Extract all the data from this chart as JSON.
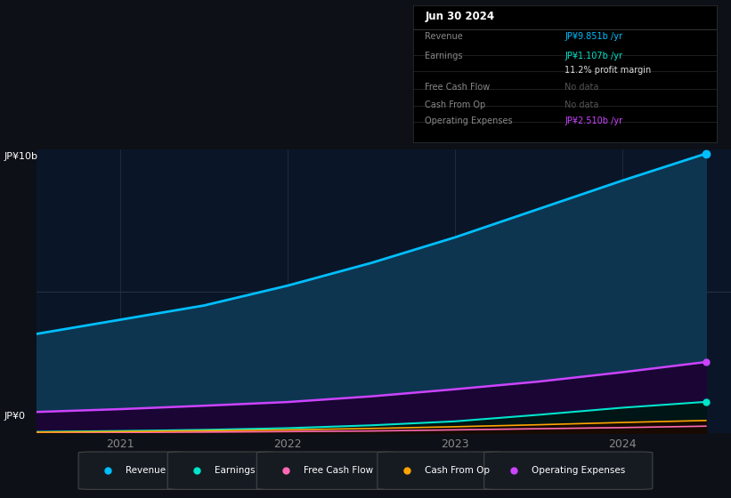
{
  "bg_color": "#0d1117",
  "plot_bg": "#0a1628",
  "title": "Jun 30 2024",
  "ylabel_top": "JP¥10b",
  "ylabel_bottom": "JP¥0",
  "x_years": [
    2020.5,
    2021.0,
    2021.5,
    2022.0,
    2022.5,
    2023.0,
    2023.5,
    2024.0,
    2024.5
  ],
  "revenue": [
    3.5,
    4.0,
    4.5,
    5.2,
    6.0,
    6.9,
    7.9,
    8.9,
    9.851
  ],
  "earnings": [
    0.05,
    0.08,
    0.12,
    0.18,
    0.28,
    0.42,
    0.65,
    0.9,
    1.107
  ],
  "free_cash_flow": [
    0.02,
    0.03,
    0.04,
    0.06,
    0.08,
    0.12,
    0.16,
    0.2,
    0.25
  ],
  "cash_from_op": [
    0.04,
    0.06,
    0.09,
    0.12,
    0.17,
    0.23,
    0.3,
    0.38,
    0.45
  ],
  "operating_expenses": [
    0.75,
    0.85,
    0.97,
    1.1,
    1.3,
    1.55,
    1.82,
    2.15,
    2.51
  ],
  "revenue_color": "#00bfff",
  "earnings_color": "#00e5cc",
  "free_cash_flow_color": "#ff69b4",
  "cash_from_op_color": "#ffa500",
  "op_expenses_color": "#cc44ff",
  "x_tick_labels": [
    "2021",
    "2022",
    "2023",
    "2024"
  ],
  "x_tick_positions": [
    2021,
    2022,
    2023,
    2024
  ],
  "ylim": [
    0,
    10
  ],
  "grid_color": "#243447",
  "legend_items": [
    {
      "label": "Revenue",
      "color": "#00bfff"
    },
    {
      "label": "Earnings",
      "color": "#00e5cc"
    },
    {
      "label": "Free Cash Flow",
      "color": "#ff69b4"
    },
    {
      "label": "Cash From Op",
      "color": "#ffa500"
    },
    {
      "label": "Operating Expenses",
      "color": "#cc44ff"
    }
  ],
  "table_rows": [
    {
      "label": "Revenue",
      "value": "JP¥9.851b /yr",
      "label_color": "#888888",
      "value_color": "#00bfff"
    },
    {
      "label": "Earnings",
      "value": "JP¥1.107b /yr",
      "label_color": "#888888",
      "value_color": "#00e5cc"
    },
    {
      "label": "",
      "value": "11.2% profit margin",
      "label_color": "#888888",
      "value_color": "#dddddd"
    },
    {
      "label": "Free Cash Flow",
      "value": "No data",
      "label_color": "#888888",
      "value_color": "#555555"
    },
    {
      "label": "Cash From Op",
      "value": "No data",
      "label_color": "#888888",
      "value_color": "#555555"
    },
    {
      "label": "Operating Expenses",
      "value": "JP¥2.510b /yr",
      "label_color": "#888888",
      "value_color": "#cc44ff"
    }
  ]
}
